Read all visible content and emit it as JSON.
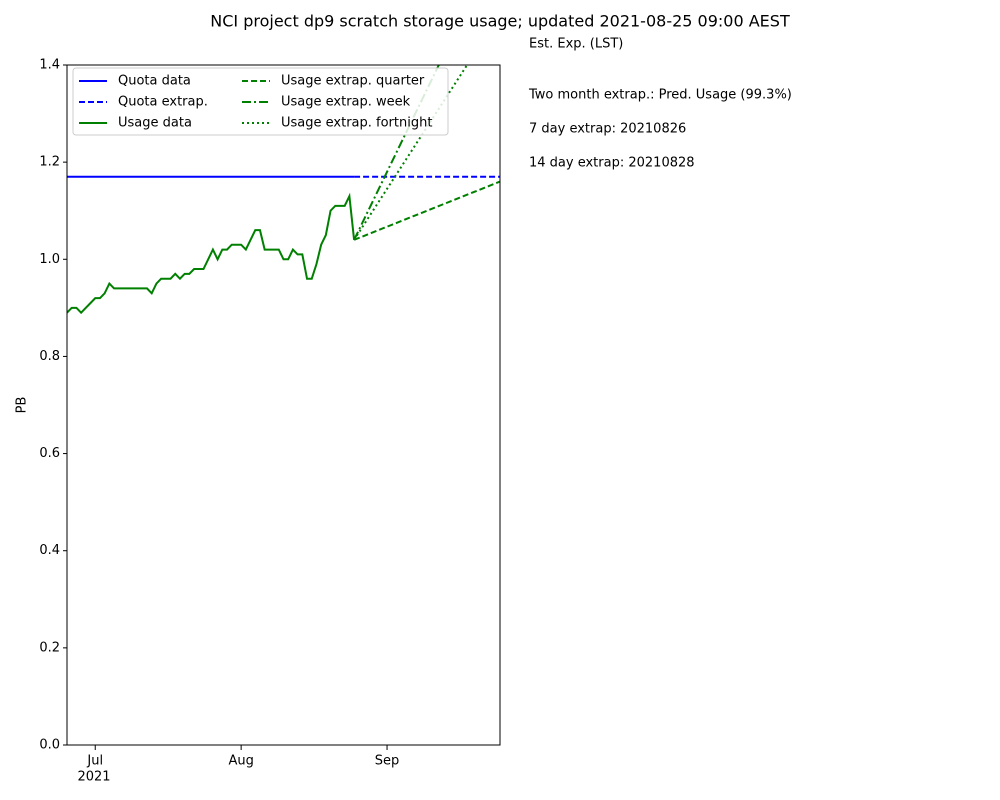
{
  "chart_data": {
    "type": "line",
    "title": "NCI project dp9 scratch storage usage; updated 2021-08-25 09:00 AEST",
    "y_label": "PB",
    "annotations": [
      "Est. Exp. (LST)",
      "Two month extrap.: Pred. Usage (99.3%)",
      "7 day extrap: 20210826",
      "14 day extrap: 20210828"
    ],
    "xlim": [
      "2021-06-25",
      "2021-09-25"
    ],
    "xticks": [
      {
        "value": "2021-07-01",
        "label": "Jul"
      },
      {
        "value": "2021-08-01",
        "label": "Aug"
      },
      {
        "value": "2021-09-01",
        "label": "Sep"
      }
    ],
    "xtick_year": "2021",
    "ylim": [
      0,
      1.4
    ],
    "yticks": [
      {
        "value": 0,
        "label": "0.0"
      },
      0.2,
      0.4,
      0.6,
      0.8,
      {
        "value": 1,
        "label": "1.0"
      },
      1.2,
      1.4
    ],
    "legend": "upper left",
    "series": [
      {
        "name": "Quota data",
        "color": "#0000ff",
        "dash": "solid",
        "x": [
          "2021-06-25",
          "2021-08-25"
        ],
        "values": [
          1.17,
          1.17
        ]
      },
      {
        "name": "Quota extrap.",
        "color": "#0000ff",
        "dash": "dashed",
        "x": [
          "2021-08-25",
          "2021-09-25"
        ],
        "values": [
          1.17,
          1.17
        ]
      },
      {
        "name": "Usage data",
        "color": "#008000",
        "dash": "solid",
        "x": [
          "2021-06-25",
          "2021-06-26",
          "2021-06-27",
          "2021-06-28",
          "2021-06-29",
          "2021-06-30",
          "2021-07-01",
          "2021-07-02",
          "2021-07-03",
          "2021-07-04",
          "2021-07-05",
          "2021-07-06",
          "2021-07-07",
          "2021-07-08",
          "2021-07-09",
          "2021-07-10",
          "2021-07-11",
          "2021-07-12",
          "2021-07-13",
          "2021-07-14",
          "2021-07-15",
          "2021-07-16",
          "2021-07-17",
          "2021-07-18",
          "2021-07-19",
          "2021-07-20",
          "2021-07-21",
          "2021-07-22",
          "2021-07-23",
          "2021-07-24",
          "2021-07-25",
          "2021-07-26",
          "2021-07-27",
          "2021-07-28",
          "2021-07-29",
          "2021-07-30",
          "2021-07-31",
          "2021-08-01",
          "2021-08-02",
          "2021-08-03",
          "2021-08-04",
          "2021-08-05",
          "2021-08-06",
          "2021-08-07",
          "2021-08-08",
          "2021-08-09",
          "2021-08-10",
          "2021-08-11",
          "2021-08-12",
          "2021-08-13",
          "2021-08-14",
          "2021-08-15",
          "2021-08-16",
          "2021-08-17",
          "2021-08-18",
          "2021-08-19",
          "2021-08-20",
          "2021-08-21",
          "2021-08-22",
          "2021-08-23",
          "2021-08-24",
          "2021-08-25"
        ],
        "values": [
          0.89,
          0.9,
          0.9,
          0.89,
          0.9,
          0.91,
          0.92,
          0.92,
          0.93,
          0.95,
          0.94,
          0.94,
          0.94,
          0.94,
          0.94,
          0.94,
          0.94,
          0.94,
          0.93,
          0.95,
          0.96,
          0.96,
          0.96,
          0.97,
          0.96,
          0.97,
          0.97,
          0.98,
          0.98,
          0.98,
          1.0,
          1.02,
          1.0,
          1.02,
          1.02,
          1.03,
          1.03,
          1.03,
          1.02,
          1.04,
          1.06,
          1.06,
          1.02,
          1.02,
          1.02,
          1.02,
          1.0,
          1.0,
          1.02,
          1.01,
          1.01,
          0.96,
          0.96,
          0.99,
          1.03,
          1.05,
          1.1,
          1.11,
          1.11,
          1.11,
          1.13,
          1.04
        ]
      },
      {
        "name": "Usage extrap. quarter",
        "color": "#008000",
        "dash": "dashed",
        "x": [
          "2021-08-25",
          "2021-09-25"
        ],
        "values": [
          1.04,
          1.16
        ]
      },
      {
        "name": "Usage extrap. week",
        "color": "#008000",
        "dash": "dashdot",
        "x": [
          "2021-08-25",
          "2021-09-12"
        ],
        "values": [
          1.04,
          1.4
        ]
      },
      {
        "name": "Usage extrap. fortnight",
        "color": "#008000",
        "dash": "dotted",
        "x": [
          "2021-08-25",
          "2021-09-18"
        ],
        "values": [
          1.04,
          1.4
        ]
      }
    ]
  }
}
